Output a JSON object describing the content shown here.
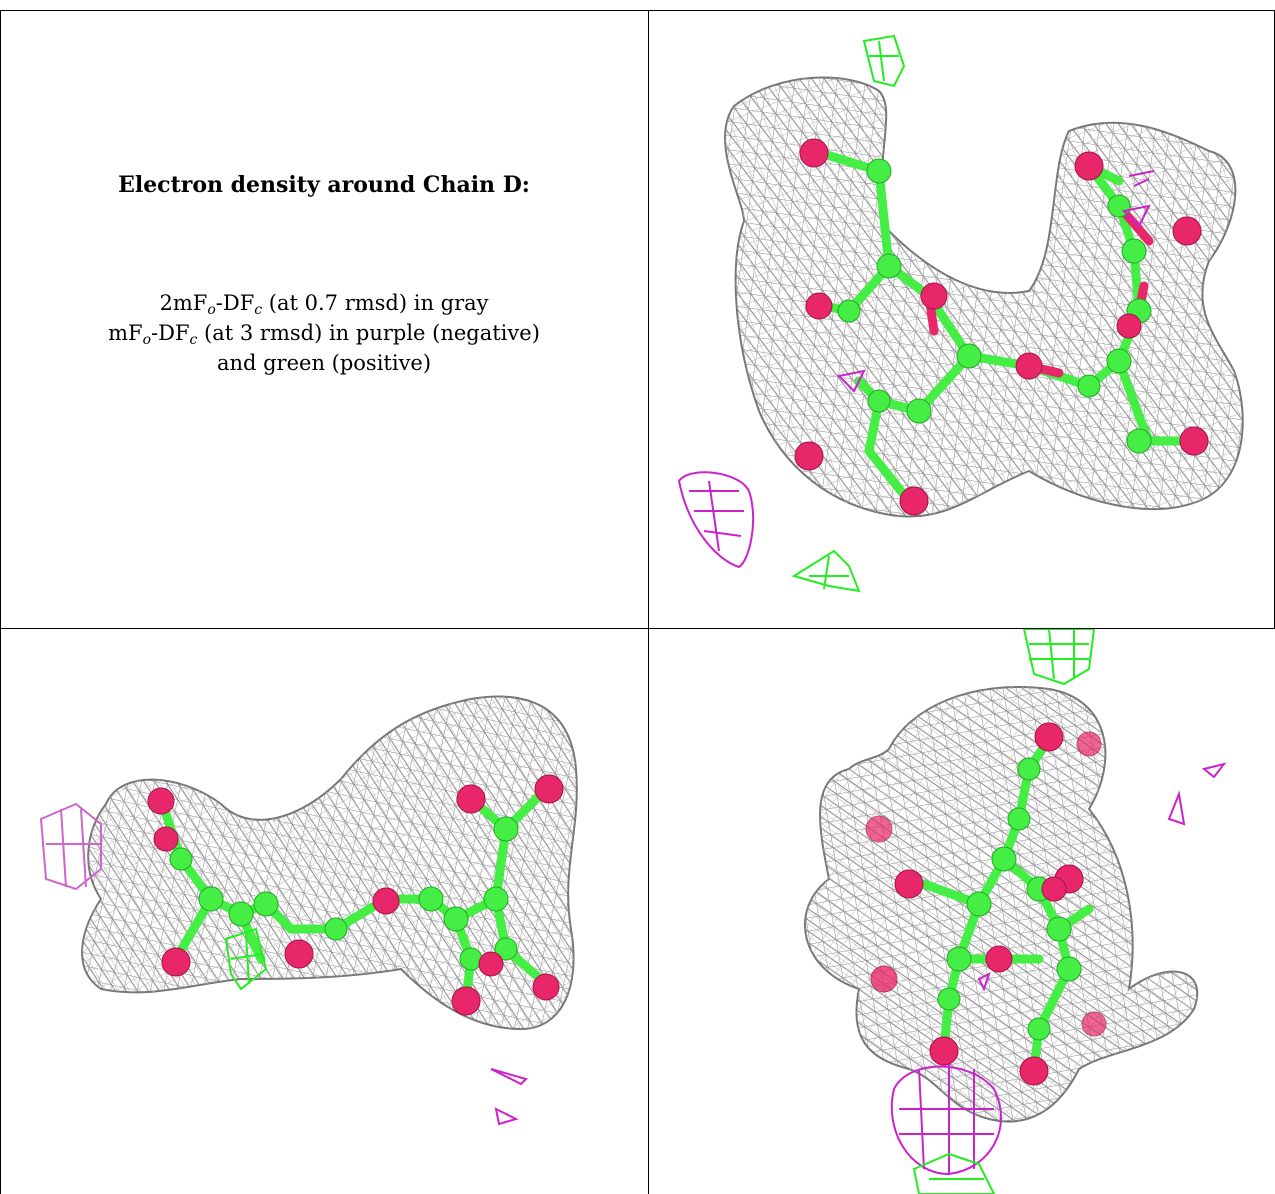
{
  "caption": {
    "title": "Electron density around Chain D:",
    "line1_prefix": "2mF",
    "line1_sub1": "o",
    "line1_mid": "-DF",
    "line1_sub2": "c",
    "line1_suffix": " (at 0.7 rmsd) in gray",
    "line2_prefix": "mF",
    "line2_sub1": "o",
    "line2_mid": "-DF",
    "line2_sub2": "c",
    "line2_suffix": " (at 3 rmsd) in purple (negative)",
    "line3": "and green (positive)"
  },
  "colors": {
    "mesh_gray": "#9a9a9a",
    "negative_purple": "#cc22cc",
    "positive_green": "#22ee22",
    "oxygen_atom": "#e8276b",
    "carbon_atom": "#44ee44"
  },
  "panels": [
    {
      "view": "top-right"
    },
    {
      "view": "bottom-left"
    },
    {
      "view": "bottom-right"
    }
  ]
}
